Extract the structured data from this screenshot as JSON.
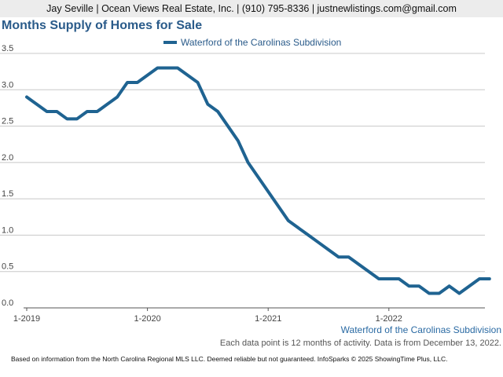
{
  "header": "Jay Seville | Ocean Views Real Estate, Inc. | (910) 795-8336 | justnewlistings.com@gmail.com",
  "chart_data": {
    "type": "line",
    "title": "Months Supply of Homes for Sale",
    "xlabel": "",
    "ylabel": "",
    "x_tick_labels": [
      "1-2019",
      "1-2020",
      "1-2021",
      "1-2022"
    ],
    "y_ticks": [
      0.0,
      0.5,
      1.0,
      1.5,
      2.0,
      2.5,
      3.0,
      3.5
    ],
    "y_tick_labels": [
      "0.0",
      "0.5",
      "1.0",
      "1.5",
      "2.0",
      "2.5",
      "3.0",
      "3.5"
    ],
    "ylim": [
      0,
      3.5
    ],
    "grid": true,
    "legend_position": "top-center",
    "x": [
      "1-2019",
      "2-2019",
      "3-2019",
      "4-2019",
      "5-2019",
      "6-2019",
      "7-2019",
      "8-2019",
      "9-2019",
      "10-2019",
      "11-2019",
      "12-2019",
      "1-2020",
      "2-2020",
      "3-2020",
      "4-2020",
      "5-2020",
      "6-2020",
      "7-2020",
      "8-2020",
      "9-2020",
      "10-2020",
      "11-2020",
      "12-2020",
      "1-2021",
      "2-2021",
      "3-2021",
      "4-2021",
      "5-2021",
      "6-2021",
      "7-2021",
      "8-2021",
      "9-2021",
      "10-2021",
      "11-2021",
      "12-2021",
      "1-2022",
      "2-2022",
      "3-2022",
      "4-2022",
      "5-2022",
      "6-2022",
      "7-2022",
      "8-2022",
      "9-2022",
      "10-2022",
      "11-2022"
    ],
    "series": [
      {
        "name": "Waterford of the Carolinas Subdivision",
        "color": "#1f6391",
        "values": [
          2.9,
          2.8,
          2.7,
          2.7,
          2.6,
          2.6,
          2.7,
          2.7,
          2.8,
          2.9,
          3.1,
          3.1,
          3.2,
          3.3,
          3.3,
          3.3,
          3.2,
          3.1,
          2.8,
          2.7,
          2.5,
          2.3,
          2.0,
          1.8,
          1.6,
          1.4,
          1.2,
          1.1,
          1.0,
          0.9,
          0.8,
          0.7,
          0.7,
          0.6,
          0.5,
          0.4,
          0.4,
          0.4,
          0.3,
          0.3,
          0.2,
          0.2,
          0.3,
          0.2,
          0.3,
          0.4,
          0.4
        ]
      }
    ]
  },
  "caption_series": "Waterford of the Carolinas Subdivision",
  "caption_note": "Each data point is 12 months of activity. Data is from December 13, 2022.",
  "footer": "Based on information from the North Carolina Regional MLS LLC. Deemed reliable but not guaranteed. InfoSparks © 2025 ShowingTime Plus, LLC."
}
